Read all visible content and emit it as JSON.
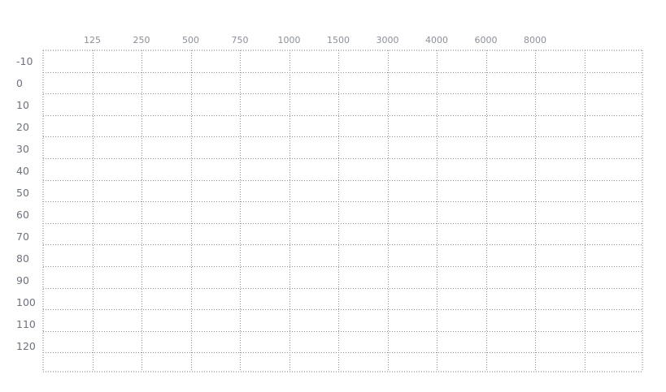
{
  "chart_data": {
    "type": "scatter",
    "title": "",
    "xlabel": "",
    "ylabel": "",
    "x_tick_labels": [
      "125",
      "250",
      "500",
      "750",
      "1000",
      "1500",
      "3000",
      "4000",
      "6000",
      "8000"
    ],
    "y_tick_labels": [
      "-10",
      "0",
      "10",
      "20",
      "30",
      "40",
      "50",
      "60",
      "70",
      "80",
      "90",
      "100",
      "110",
      "120"
    ],
    "x_axis_position": "top",
    "ylim": [
      -10,
      120
    ],
    "y_inverted": true,
    "grid": true,
    "grid_style": "dotted",
    "series": []
  }
}
